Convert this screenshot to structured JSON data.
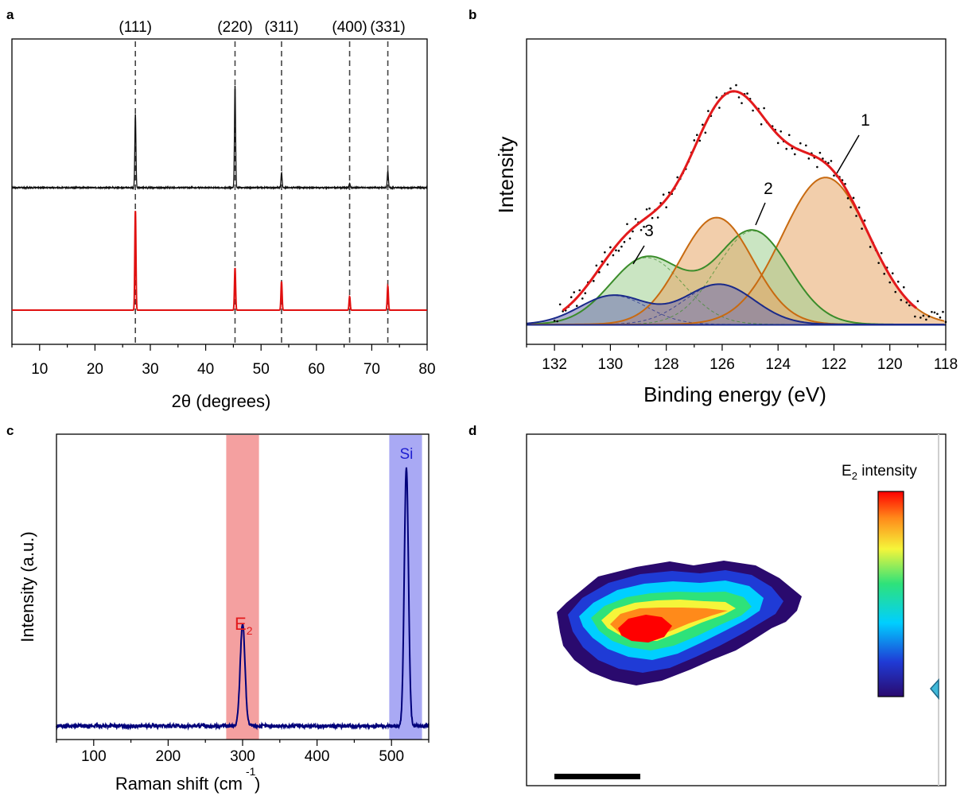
{
  "panels": {
    "a": "a",
    "b": "b",
    "c": "c",
    "d": "d"
  },
  "chart_data": [
    {
      "type": "line",
      "panel": "a",
      "xlabel": "2θ (degrees)",
      "ylabel": "",
      "xlim": [
        5,
        80
      ],
      "x_ticks": [
        "10",
        "20",
        "30",
        "40",
        "50",
        "60",
        "70",
        "80"
      ],
      "peak_labels": [
        {
          "label": "(111)",
          "x": 27.3
        },
        {
          "label": "(220)",
          "x": 45.3
        },
        {
          "label": "(311)",
          "x": 53.7
        },
        {
          "label": "(400)",
          "x": 66.0
        },
        {
          "label": "(331)",
          "x": 72.9
        }
      ],
      "series": [
        {
          "color": "#111111",
          "peaks_x": [
            27.3,
            45.3,
            53.7,
            66.0,
            72.9
          ],
          "relative_heights": [
            0.49,
            0.68,
            0.1,
            0.03,
            0.11
          ]
        },
        {
          "color": "#e01010",
          "peaks_x": [
            27.3,
            45.3,
            53.7,
            66.0,
            72.9
          ],
          "relative_heights": [
            0.66,
            0.28,
            0.19,
            0.09,
            0.16
          ]
        }
      ],
      "grid": false
    },
    {
      "type": "area",
      "panel": "b",
      "xlabel": "Binding energy (eV)",
      "ylabel": "Intensity",
      "xlim": [
        133,
        118
      ],
      "x_ticks": [
        "132",
        "130",
        "128",
        "126",
        "124",
        "122",
        "120",
        "118"
      ],
      "component_labels": [
        "1",
        "2",
        "3"
      ],
      "components": [
        {
          "label": "1",
          "color": "#e8a566",
          "edge": "#c86a10",
          "peaks": [
            {
              "center": 122.3,
              "height": 0.66,
              "width": 1.55
            }
          ]
        },
        {
          "label": "2",
          "color": "#9fd090",
          "edge": "#3a8c2a",
          "peaks": [
            {
              "center": 124.9,
              "height": 0.42,
              "width": 1.3
            },
            {
              "center": 128.7,
              "height": 0.3,
              "width": 1.3
            }
          ]
        },
        {
          "label": "",
          "color": "#e8a566",
          "edge": "#c86a10",
          "peaks": [
            {
              "center": 126.2,
              "height": 0.48,
              "width": 1.3
            }
          ]
        },
        {
          "label": "3",
          "color": "#7070b0",
          "edge": "#1a2a8a",
          "peaks": [
            {
              "center": 129.9,
              "height": 0.13,
              "width": 1.2
            },
            {
              "center": 126.1,
              "height": 0.18,
              "width": 1.25
            }
          ]
        }
      ],
      "envelope": {
        "color": "#e31a1c",
        "xrange": [
          131.7,
          119.0
        ]
      },
      "raw_points": {
        "color": "#000000",
        "xrange": [
          132.0,
          118.0
        ]
      },
      "grid": false
    },
    {
      "type": "line",
      "panel": "c",
      "xlabel": "Raman shift (cm",
      "xlabel_sup": "-1",
      "xlabel_tail": ")",
      "ylabel": "Intensity (a.u.)",
      "xlim": [
        50,
        550
      ],
      "x_ticks": [
        "100",
        "200",
        "300",
        "400",
        "500"
      ],
      "bands": [
        {
          "x0": 278,
          "x1": 322,
          "color": "#f08080"
        },
        {
          "x0": 497,
          "x1": 541,
          "color": "#8c8cf0"
        }
      ],
      "peak_labels": [
        {
          "label": "E",
          "sub": "2",
          "x": 300,
          "color": "#e31a1c"
        },
        {
          "label": "Si",
          "x": 520,
          "color": "#1f1fd0"
        }
      ],
      "series": [
        {
          "color": "#00007a",
          "peaks": [
            {
              "center": 300,
              "height": 0.35,
              "width": 3.2
            },
            {
              "center": 520,
              "height": 0.88,
              "width": 2.8
            }
          ],
          "baseline": 0.03
        }
      ],
      "grid": false
    },
    {
      "type": "heatmap",
      "panel": "d",
      "colorbar_label": "E",
      "colorbar_sub": "2",
      "colorbar_tail": " intensity",
      "colormap": [
        "#2a0a6e",
        "#1f3bd6",
        "#00cfff",
        "#2ee27a",
        "#f5f53a",
        "#ff8a1a",
        "#ff0000"
      ],
      "scale_bar": true
    }
  ]
}
